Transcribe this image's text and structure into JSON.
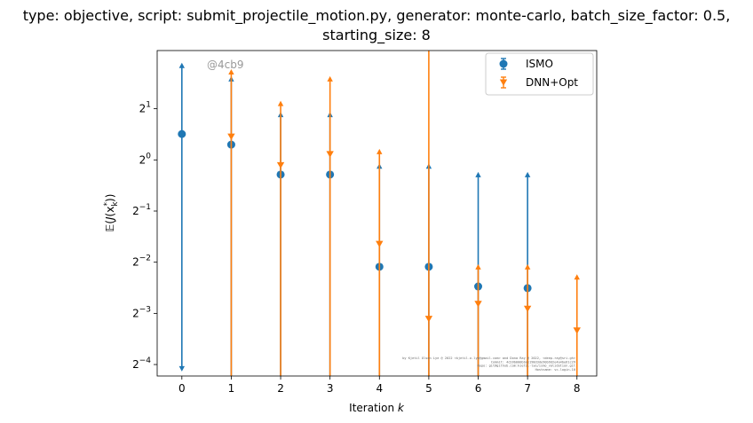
{
  "chart_data": {
    "type": "scatter",
    "title_line1": "type: objective, script: submit_projectile_motion.py, generator: monte-carlo, batch_size_factor: 0.5,",
    "title_line2": "starting_size: 8",
    "xlabel": "Iteration k",
    "xlabel_prefix": "Iteration ",
    "xlabel_italic": "k",
    "ylabel": "E(J(x*_k))",
    "yscale": "log2",
    "ylim": [
      0.0535,
      4.4
    ],
    "xlim": [
      -0.5,
      8.4
    ],
    "x_ticks": [
      0,
      1,
      2,
      3,
      4,
      5,
      6,
      7,
      8
    ],
    "y_tick_exponents": [
      1,
      0,
      -1,
      -2,
      -3,
      -4
    ],
    "y_tick_base": "2",
    "legend_position": "upper-right",
    "annotation": "@4cb9",
    "footer_text": [
      "by Kjetil Olsen Lye @ 2022 <kjetil.o.lye@gmail.com> and Dona Ray @ 2022, <deep-ray@sri.gh>",
      "Commit: 4cb9b000bba1198d3de90b9d2e4a4be61c29",
      "Repo: git@github.com:kjetil-lye/ismo_validation.git",
      "Hostname: vc-login-10"
    ],
    "series": [
      {
        "name": "ISMO",
        "color": "#1f77b4",
        "marker": "circle",
        "x": [
          0,
          1,
          2,
          3,
          4,
          5,
          6,
          7
        ],
        "y": [
          1.42,
          1.23,
          0.82,
          0.82,
          0.235,
          0.235,
          0.18,
          0.176
        ],
        "y_low": [
          0.059,
          0.0535,
          0.0535,
          0.0535,
          0.0535,
          0.0535,
          0.0535,
          0.0535
        ],
        "y_high": [
          3.6,
          3.0,
          1.85,
          1.85,
          0.92,
          0.92,
          0.82,
          0.82
        ],
        "low_cap_shown": [
          true,
          false,
          false,
          false,
          false,
          false,
          false,
          false
        ]
      },
      {
        "name": "DNN+Opt",
        "color": "#ff7f0e",
        "marker": "triangle-down",
        "x": [
          1,
          2,
          3,
          4,
          5,
          6,
          7,
          8
        ],
        "y": [
          1.37,
          0.93,
          1.08,
          0.32,
          0.116,
          0.142,
          0.133,
          0.099
        ],
        "y_low": [
          0.0535,
          0.0535,
          0.0535,
          0.0535,
          0.0535,
          0.0535,
          0.0535,
          0.0535
        ],
        "y_high": [
          3.3,
          2.15,
          3.0,
          1.12,
          0.0,
          0.235,
          0.235,
          0.205
        ],
        "low_cap_shown": [
          false,
          false,
          false,
          false,
          false,
          false,
          false,
          false
        ]
      }
    ]
  }
}
